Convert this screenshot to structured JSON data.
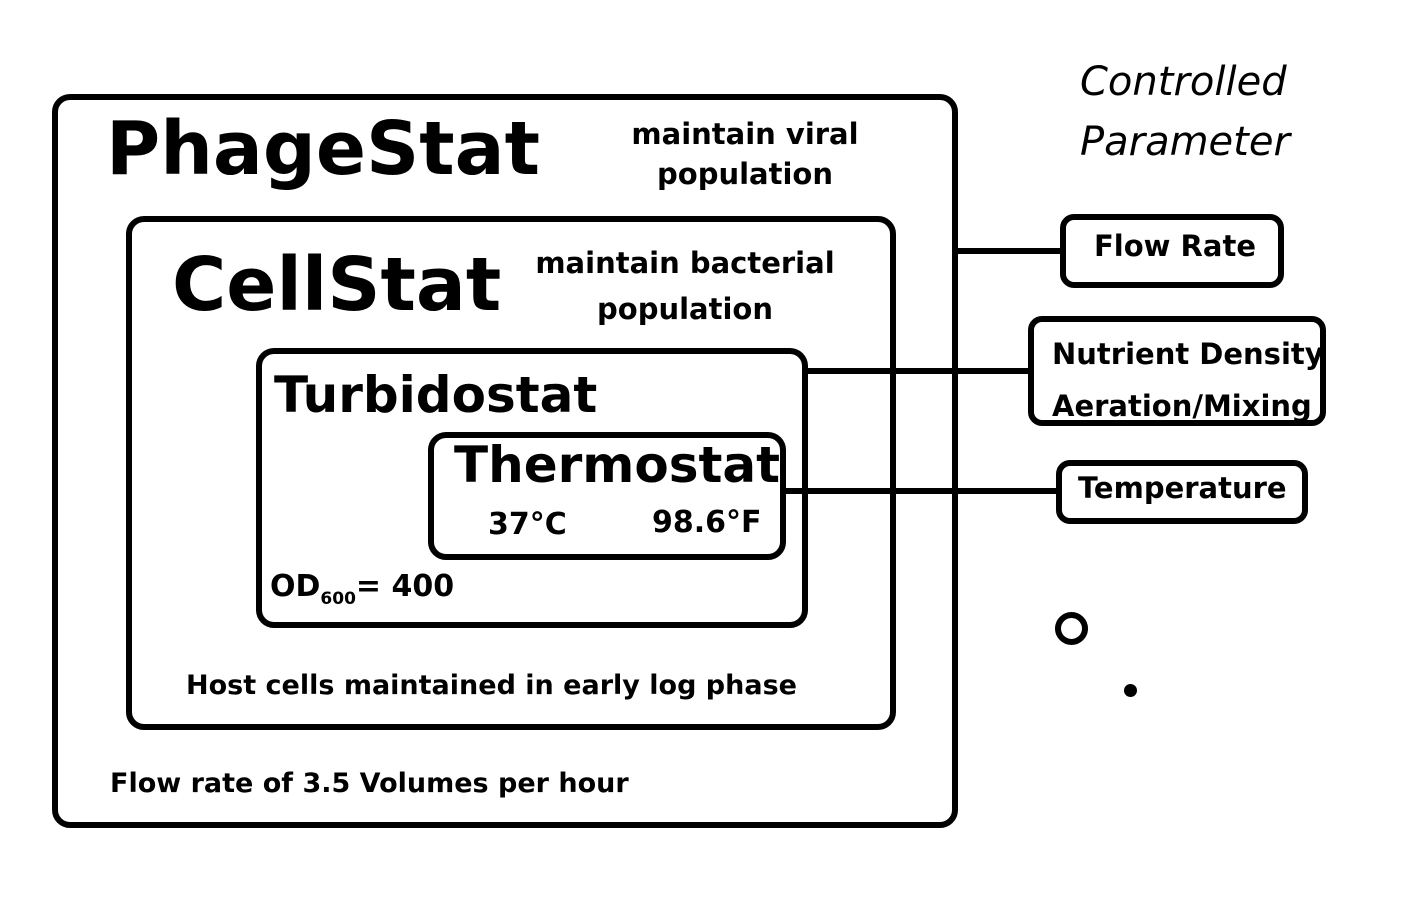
{
  "phagestat": {
    "title": "PhageStat",
    "desc_line1": "maintain viral",
    "desc_line2": "population",
    "footer": "Flow rate of 3.5 Volumes per hour"
  },
  "cellstat": {
    "title": "CellStat",
    "desc_line1": "maintain bacterial",
    "desc_line2": "population",
    "footer": "Host cells maintained in early log phase"
  },
  "turbidostat": {
    "title": "Turbidostat",
    "od_prefix": "OD",
    "od_subscript": "600",
    "od_value": "= 400"
  },
  "thermostat": {
    "title": "Thermostat",
    "celsius": "37°C",
    "fahrenheit": "98.6°F"
  },
  "controlled_parameter": {
    "line1": "Controlled",
    "line2": "Parameter"
  },
  "parameters": {
    "flow_rate": "Flow Rate",
    "nutrient_density": "Nutrient Density",
    "aeration_mixing": "Aeration/Mixing",
    "temperature": "Temperature"
  }
}
